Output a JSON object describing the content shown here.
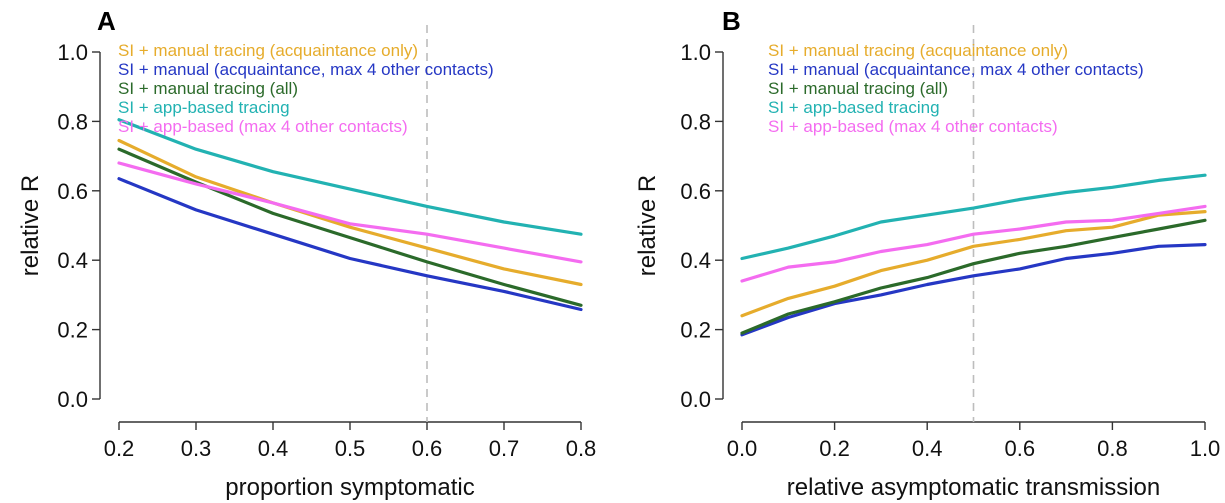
{
  "chart_data": [
    {
      "type": "line",
      "panel_label": "A",
      "xlabel": "proportion symptomatic",
      "ylabel": "relative R",
      "xlim": [
        0.2,
        0.8
      ],
      "ylim": [
        0.0,
        1.0
      ],
      "x_ticks": [
        "0.2",
        "0.3",
        "0.4",
        "0.5",
        "0.6",
        "0.7",
        "0.8"
      ],
      "y_ticks": [
        "0.0",
        "0.2",
        "0.4",
        "0.6",
        "0.8",
        "1.0"
      ],
      "reference_x": 0.6,
      "x": [
        0.2,
        0.3,
        0.4,
        0.5,
        0.6,
        0.7,
        0.8
      ],
      "legend_position": "top-left",
      "series": [
        {
          "name": "SI + manual tracing (acquaintance only)",
          "color": "#e6ac2c",
          "values": [
            0.745,
            0.64,
            0.565,
            0.495,
            0.435,
            0.375,
            0.33
          ]
        },
        {
          "name": "SI + manual (acquaintance, max 4 other contacts)",
          "color": "#2537c4",
          "values": [
            0.635,
            0.545,
            0.475,
            0.405,
            0.355,
            0.31,
            0.258
          ]
        },
        {
          "name": "SI + manual tracing (all)",
          "color": "#2b6a2a",
          "values": [
            0.72,
            0.625,
            0.535,
            0.465,
            0.395,
            0.33,
            0.27
          ]
        },
        {
          "name": "SI + app-based tracing",
          "color": "#22b2b2",
          "values": [
            0.805,
            0.72,
            0.655,
            0.605,
            0.555,
            0.51,
            0.475
          ]
        },
        {
          "name": "SI + app-based (max 4 other contacts)",
          "color": "#f46cf0",
          "values": [
            0.68,
            0.62,
            0.565,
            0.505,
            0.475,
            0.435,
            0.395
          ]
        }
      ]
    },
    {
      "type": "line",
      "panel_label": "B",
      "xlabel": "relative asymptomatic transmission",
      "ylabel": "relative R",
      "xlim": [
        0.0,
        1.0
      ],
      "ylim": [
        0.0,
        1.0
      ],
      "x_ticks": [
        "0.0",
        "0.2",
        "0.4",
        "0.6",
        "0.8",
        "1.0"
      ],
      "y_ticks": [
        "0.0",
        "0.2",
        "0.4",
        "0.6",
        "0.8",
        "1.0"
      ],
      "reference_x": 0.5,
      "x": [
        0.0,
        0.1,
        0.2,
        0.3,
        0.4,
        0.5,
        0.6,
        0.7,
        0.8,
        0.9,
        1.0
      ],
      "legend_position": "top-left",
      "series": [
        {
          "name": "SI + manual tracing (acquaintance only)",
          "color": "#e6ac2c",
          "values": [
            0.24,
            0.29,
            0.325,
            0.37,
            0.4,
            0.44,
            0.46,
            0.485,
            0.495,
            0.53,
            0.54
          ]
        },
        {
          "name": "SI + manual (acquaintance, max 4 other contacts)",
          "color": "#2537c4",
          "values": [
            0.185,
            0.235,
            0.275,
            0.3,
            0.33,
            0.355,
            0.375,
            0.405,
            0.42,
            0.44,
            0.445
          ]
        },
        {
          "name": "SI + manual tracing (all)",
          "color": "#2b6a2a",
          "values": [
            0.19,
            0.245,
            0.28,
            0.32,
            0.35,
            0.39,
            0.42,
            0.44,
            0.465,
            0.49,
            0.515
          ]
        },
        {
          "name": "SI + app-based tracing",
          "color": "#22b2b2",
          "values": [
            0.405,
            0.435,
            0.47,
            0.51,
            0.53,
            0.55,
            0.575,
            0.595,
            0.61,
            0.63,
            0.645
          ]
        },
        {
          "name": "SI + app-based (max 4 other contacts)",
          "color": "#f46cf0",
          "values": [
            0.34,
            0.38,
            0.395,
            0.425,
            0.445,
            0.475,
            0.49,
            0.51,
            0.515,
            0.535,
            0.555
          ]
        }
      ]
    }
  ]
}
